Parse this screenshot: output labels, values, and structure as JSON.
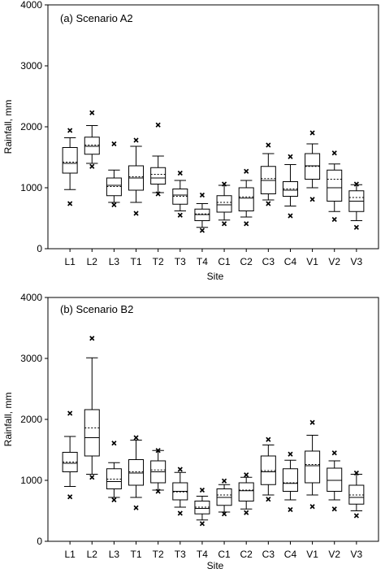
{
  "chart_data": [
    {
      "type": "box",
      "title": "(a) Scenario A2",
      "xlabel": "Site",
      "ylabel": "Rainfall, mm",
      "ylim": [
        0,
        4000
      ],
      "yticks": [
        "0",
        "1000",
        "2000",
        "3000",
        "4000"
      ],
      "grid": false,
      "categories": [
        "L1",
        "L2",
        "L3",
        "T1",
        "T2",
        "T3",
        "T4",
        "C1",
        "C2",
        "C3",
        "C4",
        "V1",
        "V2",
        "V3"
      ],
      "boxes": [
        {
          "whisker_low": 970,
          "q1": 1240,
          "median": 1400,
          "mean": 1420,
          "q3": 1660,
          "whisker_high": 1820,
          "outliers": [
            740,
            1940
          ]
        },
        {
          "whisker_low": 1400,
          "q1": 1550,
          "median": 1680,
          "mean": 1700,
          "q3": 1830,
          "whisker_high": 2020,
          "outliers": [
            1350,
            2230
          ]
        },
        {
          "whisker_low": 760,
          "q1": 870,
          "median": 1040,
          "mean": 1020,
          "q3": 1160,
          "whisker_high": 1290,
          "outliers": [
            720,
            1720
          ]
        },
        {
          "whisker_low": 760,
          "q1": 960,
          "median": 1160,
          "mean": 1180,
          "q3": 1360,
          "whisker_high": 1680,
          "outliers": [
            580,
            1780
          ]
        },
        {
          "whisker_low": 920,
          "q1": 1060,
          "median": 1160,
          "mean": 1220,
          "q3": 1330,
          "whisker_high": 1520,
          "outliers": [
            900,
            2030
          ]
        },
        {
          "whisker_low": 620,
          "q1": 730,
          "median": 880,
          "mean": 860,
          "q3": 980,
          "whisker_high": 1120,
          "outliers": [
            550,
            1240
          ]
        },
        {
          "whisker_low": 350,
          "q1": 460,
          "median": 560,
          "mean": 570,
          "q3": 650,
          "whisker_high": 740,
          "outliers": [
            300,
            880
          ]
        },
        {
          "whisker_low": 470,
          "q1": 600,
          "median": 720,
          "mean": 760,
          "q3": 870,
          "whisker_high": 1040,
          "outliers": [
            410,
            1060
          ]
        },
        {
          "whisker_low": 520,
          "q1": 620,
          "median": 830,
          "mean": 850,
          "q3": 1000,
          "whisker_high": 1120,
          "outliers": [
            410,
            1270
          ]
        },
        {
          "whisker_low": 800,
          "q1": 900,
          "median": 1120,
          "mean": 1150,
          "q3": 1350,
          "whisker_high": 1560,
          "outliers": [
            740,
            1700
          ]
        },
        {
          "whisker_low": 700,
          "q1": 860,
          "median": 960,
          "mean": 980,
          "q3": 1100,
          "whisker_high": 1380,
          "outliers": [
            540,
            1510
          ]
        },
        {
          "whisker_low": 1000,
          "q1": 1140,
          "median": 1360,
          "mean": 1350,
          "q3": 1560,
          "whisker_high": 1720,
          "outliers": [
            810,
            1900
          ]
        },
        {
          "whisker_low": 610,
          "q1": 780,
          "median": 1000,
          "mean": 1140,
          "q3": 1290,
          "whisker_high": 1390,
          "outliers": [
            480,
            1570
          ]
        },
        {
          "whisker_low": 460,
          "q1": 610,
          "median": 780,
          "mean": 840,
          "q3": 950,
          "whisker_high": 1050,
          "outliers": [
            350,
            1060
          ]
        }
      ]
    },
    {
      "type": "box",
      "title": "(b) Scenario B2",
      "xlabel": "Site",
      "ylabel": "Rainfall, mm",
      "ylim": [
        0,
        4000
      ],
      "yticks": [
        "0",
        "1000",
        "2000",
        "3000",
        "4000"
      ],
      "grid": false,
      "categories": [
        "L1",
        "L2",
        "L3",
        "T1",
        "T2",
        "T3",
        "T4",
        "C1",
        "C2",
        "C3",
        "C4",
        "V1",
        "V2",
        "V3"
      ],
      "boxes": [
        {
          "whisker_low": 900,
          "q1": 1140,
          "median": 1280,
          "mean": 1300,
          "q3": 1460,
          "whisker_high": 1720,
          "outliers": [
            730,
            2100
          ]
        },
        {
          "whisker_low": 1100,
          "q1": 1400,
          "median": 1700,
          "mean": 1860,
          "q3": 2160,
          "whisker_high": 3010,
          "outliers": [
            1050,
            3330
          ]
        },
        {
          "whisker_low": 720,
          "q1": 860,
          "median": 980,
          "mean": 1020,
          "q3": 1190,
          "whisker_high": 1290,
          "outliers": [
            680,
            1610
          ]
        },
        {
          "whisker_low": 720,
          "q1": 920,
          "median": 1120,
          "mean": 1140,
          "q3": 1340,
          "whisker_high": 1660,
          "outliers": [
            550,
            1700
          ]
        },
        {
          "whisker_low": 840,
          "q1": 960,
          "median": 1140,
          "mean": 1170,
          "q3": 1320,
          "whisker_high": 1490,
          "outliers": [
            820,
            1490
          ]
        },
        {
          "whisker_low": 560,
          "q1": 680,
          "median": 820,
          "mean": 810,
          "q3": 960,
          "whisker_high": 1130,
          "outliers": [
            460,
            1180
          ]
        },
        {
          "whisker_low": 350,
          "q1": 450,
          "median": 540,
          "mean": 560,
          "q3": 660,
          "whisker_high": 740,
          "outliers": [
            290,
            840
          ]
        },
        {
          "whisker_low": 480,
          "q1": 590,
          "median": 720,
          "mean": 760,
          "q3": 860,
          "whisker_high": 930,
          "outliers": [
            450,
            990
          ]
        },
        {
          "whisker_low": 530,
          "q1": 660,
          "median": 830,
          "mean": 840,
          "q3": 960,
          "whisker_high": 1050,
          "outliers": [
            470,
            1090
          ]
        },
        {
          "whisker_low": 760,
          "q1": 930,
          "median": 1140,
          "mean": 1160,
          "q3": 1400,
          "whisker_high": 1580,
          "outliers": [
            690,
            1670
          ]
        },
        {
          "whisker_low": 680,
          "q1": 820,
          "median": 950,
          "mean": 960,
          "q3": 1190,
          "whisker_high": 1330,
          "outliers": [
            520,
            1430
          ]
        },
        {
          "whisker_low": 760,
          "q1": 960,
          "median": 1240,
          "mean": 1260,
          "q3": 1480,
          "whisker_high": 1740,
          "outliers": [
            570,
            1950
          ]
        },
        {
          "whisker_low": 680,
          "q1": 820,
          "median": 1000,
          "mean": 1000,
          "q3": 1200,
          "whisker_high": 1320,
          "outliers": [
            530,
            1450
          ]
        },
        {
          "whisker_low": 500,
          "q1": 610,
          "median": 720,
          "mean": 760,
          "q3": 920,
          "whisker_high": 1100,
          "outliers": [
            420,
            1120
          ]
        }
      ]
    }
  ]
}
